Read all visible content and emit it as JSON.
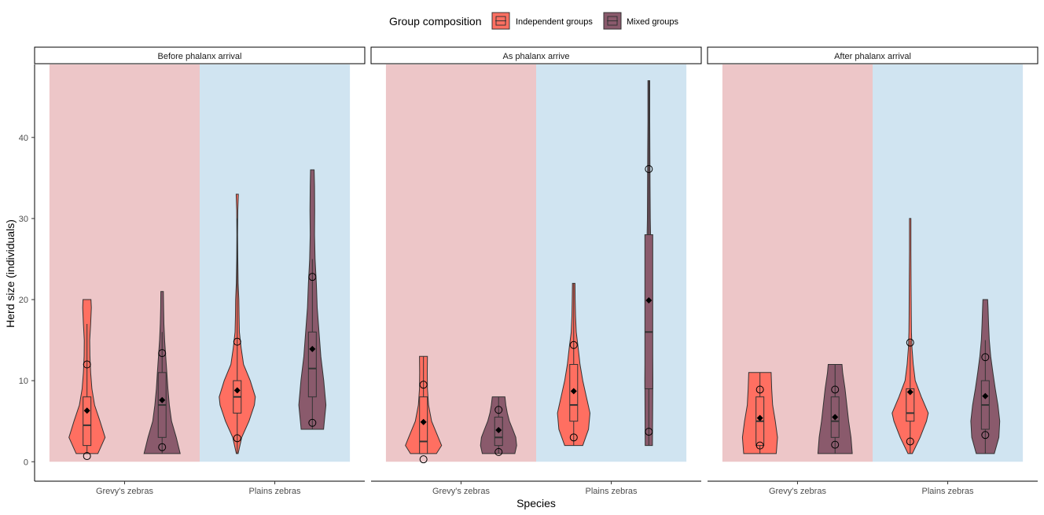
{
  "chart_data": {
    "type": "violin",
    "xlabel": "Species",
    "ylabel": "Herd size (individuals)",
    "ylim": [
      -2.4,
      49
    ],
    "yticks": [
      0,
      10,
      20,
      30,
      40
    ],
    "species": [
      "Grevy's zebras",
      "Plains zebras"
    ],
    "species_backgrounds": [
      "#edc6c8",
      "#d0e4f1"
    ],
    "legend": {
      "title": "Group composition",
      "placement": "top",
      "entries": [
        {
          "name": "Independent groups",
          "color": "#ff6f61"
        },
        {
          "name": "Mixed groups",
          "color": "#8a5a6c"
        }
      ]
    },
    "panels": [
      {
        "title": "Before phalanx arrival",
        "groups": [
          {
            "species": "Grevy's zebras",
            "composition": "Independent groups",
            "min": 1,
            "max": 20,
            "q1": 2,
            "median": 4.5,
            "q3": 8,
            "whisker_low": 1,
            "whisker_high": 17,
            "mean": 6.3,
            "sd_low": 0.7,
            "sd_high": 12,
            "density": [
              [
                1,
                0.6
              ],
              [
                3,
                1.0
              ],
              [
                5,
                0.72
              ],
              [
                7,
                0.42
              ],
              [
                9,
                0.27
              ],
              [
                11,
                0.2
              ],
              [
                13,
                0.16
              ],
              [
                15,
                0.15
              ],
              [
                17,
                0.2
              ],
              [
                19,
                0.24
              ],
              [
                20,
                0.22
              ]
            ]
          },
          {
            "species": "Grevy's zebras",
            "composition": "Mixed groups",
            "min": 1,
            "max": 21,
            "q1": 3,
            "median": 7,
            "q3": 11,
            "whisker_low": 1,
            "whisker_high": 16,
            "mean": 7.6,
            "sd_low": 1.8,
            "sd_high": 13.4,
            "density": [
              [
                1,
                1.0
              ],
              [
                3,
                0.78
              ],
              [
                5,
                0.52
              ],
              [
                7,
                0.4
              ],
              [
                9,
                0.32
              ],
              [
                11,
                0.26
              ],
              [
                13,
                0.2
              ],
              [
                15,
                0.14
              ],
              [
                17,
                0.1
              ],
              [
                19,
                0.08
              ],
              [
                21,
                0.07
              ]
            ]
          },
          {
            "species": "Plains zebras",
            "composition": "Independent groups",
            "min": 1,
            "max": 33,
            "q1": 6,
            "median": 8,
            "q3": 10,
            "whisker_low": 1,
            "whisker_high": 30,
            "mean": 8.8,
            "sd_low": 2.9,
            "sd_high": 14.8,
            "density": [
              [
                1,
                0.05
              ],
              [
                3,
                0.25
              ],
              [
                5,
                0.65
              ],
              [
                7,
                0.95
              ],
              [
                8,
                1.0
              ],
              [
                10,
                0.72
              ],
              [
                12,
                0.35
              ],
              [
                14,
                0.22
              ],
              [
                16,
                0.12
              ],
              [
                18,
                0.1
              ],
              [
                20,
                0.09
              ],
              [
                22,
                0.05
              ],
              [
                25,
                0.03
              ],
              [
                28,
                0.02
              ],
              [
                31,
                0.03
              ],
              [
                33,
                0.06
              ]
            ]
          },
          {
            "species": "Plains zebras",
            "composition": "Mixed groups",
            "min": 4,
            "max": 36,
            "q1": 8,
            "median": 11.5,
            "q3": 16,
            "whisker_low": 4,
            "whisker_high": 25,
            "mean": 13.9,
            "sd_low": 4.8,
            "sd_high": 22.8,
            "density": [
              [
                4,
                0.62
              ],
              [
                7,
                0.75
              ],
              [
                10,
                0.63
              ],
              [
                13,
                0.47
              ],
              [
                16,
                0.37
              ],
              [
                19,
                0.27
              ],
              [
                22,
                0.22
              ],
              [
                25,
                0.15
              ],
              [
                28,
                0.12
              ],
              [
                31,
                0.13
              ],
              [
                34,
                0.12
              ],
              [
                36,
                0.1
              ]
            ]
          }
        ]
      },
      {
        "title": "As phalanx arrive",
        "groups": [
          {
            "species": "Grevy's zebras",
            "composition": "Independent groups",
            "min": 1,
            "max": 13,
            "q1": 1,
            "median": 2.5,
            "q3": 8,
            "whisker_low": 1,
            "whisker_high": 13,
            "mean": 4.9,
            "sd_low": 0.3,
            "sd_high": 9.5,
            "density": [
              [
                1,
                0.72
              ],
              [
                2,
                1.0
              ],
              [
                3,
                0.82
              ],
              [
                5,
                0.45
              ],
              [
                7,
                0.28
              ],
              [
                9,
                0.22
              ],
              [
                11,
                0.21
              ],
              [
                13,
                0.22
              ]
            ]
          },
          {
            "species": "Grevy's zebras",
            "composition": "Mixed groups",
            "min": 1,
            "max": 8,
            "q1": 2,
            "median": 3,
            "q3": 5.5,
            "whisker_low": 1,
            "whisker_high": 8,
            "mean": 3.9,
            "sd_low": 1.2,
            "sd_high": 6.4,
            "density": [
              [
                1,
                0.9
              ],
              [
                2,
                1.0
              ],
              [
                3,
                0.95
              ],
              [
                4,
                0.78
              ],
              [
                5,
                0.6
              ],
              [
                6,
                0.48
              ],
              [
                7,
                0.4
              ],
              [
                8,
                0.35
              ]
            ]
          },
          {
            "species": "Plains zebras",
            "composition": "Independent groups",
            "min": 2,
            "max": 22,
            "q1": 5,
            "median": 7,
            "q3": 12,
            "whisker_low": 2,
            "whisker_high": 22,
            "mean": 8.7,
            "sd_low": 3.0,
            "sd_high": 14.4,
            "density": [
              [
                2,
                0.5
              ],
              [
                4,
                0.82
              ],
              [
                6,
                0.9
              ],
              [
                8,
                0.7
              ],
              [
                10,
                0.5
              ],
              [
                12,
                0.35
              ],
              [
                14,
                0.25
              ],
              [
                16,
                0.14
              ],
              [
                18,
                0.1
              ],
              [
                20,
                0.08
              ],
              [
                22,
                0.07
              ]
            ]
          },
          {
            "species": "Plains zebras",
            "composition": "Mixed groups",
            "min": 2,
            "max": 47,
            "q1": 9,
            "median": 16,
            "q3": 28,
            "whisker_low": 2,
            "whisker_high": 47,
            "mean": 19.9,
            "sd_low": 3.7,
            "sd_high": 36.1,
            "density": [
              [
                2,
                0.2
              ],
              [
                6,
                0.21
              ],
              [
                10,
                0.22
              ],
              [
                14,
                0.2
              ],
              [
                18,
                0.17
              ],
              [
                22,
                0.14
              ],
              [
                26,
                0.11
              ],
              [
                30,
                0.08
              ],
              [
                34,
                0.07
              ],
              [
                38,
                0.06
              ],
              [
                42,
                0.05
              ],
              [
                47,
                0.05
              ]
            ]
          }
        ]
      },
      {
        "title": "After phalanx arrival",
        "groups": [
          {
            "species": "Grevy's zebras",
            "composition": "Independent groups",
            "min": 1,
            "max": 11,
            "q1": 2,
            "median": 5,
            "q3": 8,
            "whisker_low": 1,
            "whisker_high": 11,
            "mean": 5.4,
            "sd_low": 2.0,
            "sd_high": 8.9,
            "density": [
              [
                1,
                0.9
              ],
              [
                3,
                0.97
              ],
              [
                5,
                0.85
              ],
              [
                7,
                0.7
              ],
              [
                9,
                0.65
              ],
              [
                11,
                0.62
              ]
            ]
          },
          {
            "species": "Grevy's zebras",
            "composition": "Mixed groups",
            "min": 1,
            "max": 12,
            "q1": 3,
            "median": 5,
            "q3": 8,
            "whisker_low": 1,
            "whisker_high": 12,
            "mean": 5.5,
            "sd_low": 2.1,
            "sd_high": 8.9,
            "density": [
              [
                1,
                0.95
              ],
              [
                3,
                0.88
              ],
              [
                5,
                0.75
              ],
              [
                7,
                0.65
              ],
              [
                9,
                0.55
              ],
              [
                11,
                0.42
              ],
              [
                12,
                0.38
              ]
            ]
          },
          {
            "species": "Plains zebras",
            "composition": "Independent groups",
            "min": 1,
            "max": 30,
            "q1": 5,
            "median": 6,
            "q3": 9,
            "whisker_low": 1,
            "whisker_high": 15,
            "mean": 8.6,
            "sd_low": 2.5,
            "sd_high": 14.7,
            "density": [
              [
                1,
                0.12
              ],
              [
                3,
                0.55
              ],
              [
                5,
                0.9
              ],
              [
                6,
                1.0
              ],
              [
                8,
                0.62
              ],
              [
                10,
                0.28
              ],
              [
                12,
                0.17
              ],
              [
                14,
                0.1
              ],
              [
                16,
                0.07
              ],
              [
                18,
                0.06
              ],
              [
                22,
                0.05
              ],
              [
                26,
                0.04
              ],
              [
                30,
                0.04
              ]
            ]
          },
          {
            "species": "Plains zebras",
            "composition": "Mixed groups",
            "min": 1,
            "max": 20,
            "q1": 4,
            "median": 7,
            "q3": 10,
            "whisker_low": 1,
            "whisker_high": 15,
            "mean": 8.1,
            "sd_low": 3.3,
            "sd_high": 12.9,
            "density": [
              [
                1,
                0.5
              ],
              [
                3,
                0.75
              ],
              [
                5,
                0.8
              ],
              [
                7,
                0.7
              ],
              [
                9,
                0.55
              ],
              [
                11,
                0.42
              ],
              [
                13,
                0.3
              ],
              [
                15,
                0.22
              ],
              [
                17,
                0.18
              ],
              [
                19,
                0.15
              ],
              [
                20,
                0.13
              ]
            ]
          }
        ]
      }
    ]
  }
}
